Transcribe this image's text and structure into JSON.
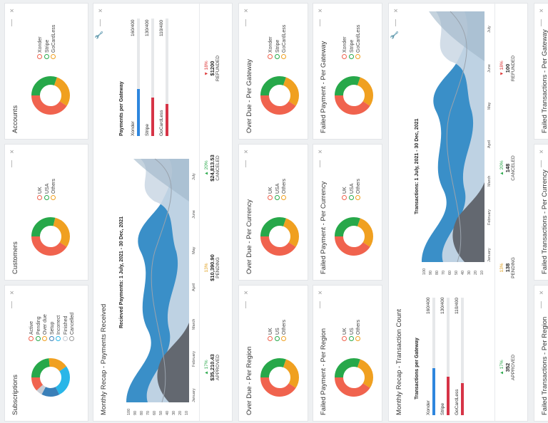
{
  "colors": {
    "red": "#f0634e",
    "green": "#27a84a",
    "orange": "#f0a020",
    "blue": "#3a8fc8",
    "lightblue": "#29b6e8",
    "gray": "#636870",
    "lightgray": "#c8ccd4",
    "paleblue": "#cdd9e6",
    "barblue": "#2e86de",
    "barred": "#d63447"
  },
  "icons": {
    "close": "×",
    "minimize": "—",
    "wrench": "🔧"
  },
  "top_row": [
    {
      "title": "Subscriptions",
      "legend": [
        "Active",
        "Pending",
        "Over due",
        "Setup",
        "Incorrect",
        "Finished",
        "Cancelled"
      ]
    },
    {
      "title": "Customers",
      "legend": [
        "UK",
        "USA",
        "Others"
      ]
    },
    {
      "title": "Accounts",
      "legend": [
        "Xonder",
        "Stripe",
        "GoCardLess"
      ]
    }
  ],
  "recap1": {
    "title": "Monthly Recap - Payments Received",
    "chart_title": "Recieved Payments: 1 July, 2021 - 30 Dec, 2021",
    "months": [
      "January",
      "February",
      "March",
      "April",
      "May",
      "June",
      "July"
    ],
    "yticks": [
      "100",
      "90",
      "80",
      "70",
      "60",
      "50",
      "40",
      "30",
      "20",
      "10"
    ],
    "gateway_title": "Payments per Gateway",
    "gateways": [
      {
        "name": "Xonder",
        "value": "160/400",
        "frac": 0.4
      },
      {
        "name": "Stripe",
        "value": "130/400",
        "frac": 0.325
      },
      {
        "name": "GoCardLess",
        "value": "110/400",
        "frac": 0.275
      }
    ],
    "stats": [
      {
        "pct": "▲ 17%",
        "amount": "$35,210.43",
        "label": "APPROVED",
        "dir": "up"
      },
      {
        "pct": "13%",
        "amount": "$10,390.90",
        "label": "PENDING",
        "dir": "flat"
      },
      {
        "pct": "▲ 20%",
        "amount": "$24,813.53",
        "label": "CANCELED",
        "dir": "up"
      },
      {
        "pct": "▼ 18%",
        "amount": "$1200",
        "label": "REFUNDED",
        "dir": "down"
      }
    ]
  },
  "mid_row1": [
    {
      "title": "Over Due - Per Region",
      "legend": [
        "UK",
        "US",
        "Others"
      ]
    },
    {
      "title": "Over Due - Per Currency",
      "legend": [
        "UK",
        "USA",
        "Others"
      ]
    },
    {
      "title": "Over Due - Per Gateway",
      "legend": [
        "Xonder",
        "Stripe",
        "GoCardLess"
      ]
    }
  ],
  "mid_row2": [
    {
      "title": "Failed Payment - Per Region",
      "legend": [
        "UK",
        "US",
        "Others"
      ]
    },
    {
      "title": "Failed Payment - Per Currency",
      "legend": [
        "UK",
        "USA",
        "Others"
      ]
    },
    {
      "title": "Failed Payment - Per Gateway",
      "legend": [
        "Xonder",
        "Stripe",
        "GoCardLess"
      ]
    }
  ],
  "recap2": {
    "title": "Monthly Recap - Transaction Count",
    "chart_title": "Transactions: 1 July, 2021 - 30 Dec, 2021",
    "months": [
      "January",
      "February",
      "March",
      "April",
      "May",
      "June",
      "July"
    ],
    "yticks": [
      "100",
      "90",
      "80",
      "70",
      "60",
      "50",
      "40",
      "30",
      "20",
      "10"
    ],
    "gateway_title": "Transactions per Gateway",
    "gateways": [
      {
        "name": "Xonder",
        "value": "160/400",
        "frac": 0.4
      },
      {
        "name": "Stripe",
        "value": "130/400",
        "frac": 0.325
      },
      {
        "name": "GoCardLess",
        "value": "110/400",
        "frac": 0.275
      }
    ],
    "stats": [
      {
        "pct": "▲ 17%",
        "amount": "352",
        "label": "APPROVED",
        "dir": "up"
      },
      {
        "pct": "13%",
        "amount": "138",
        "label": "PENDING",
        "dir": "flat"
      },
      {
        "pct": "▲ 20%",
        "amount": "148",
        "label": "CANCELED",
        "dir": "up"
      },
      {
        "pct": "▼ 18%",
        "amount": "100",
        "label": "REFUNDED",
        "dir": "down"
      }
    ]
  },
  "bottom_row": [
    {
      "title": "Failed Transactions - Per Region"
    },
    {
      "title": "Failed Transactions - Per Currency"
    },
    {
      "title": "Failed Transactions - Per Gateway"
    }
  ]
}
